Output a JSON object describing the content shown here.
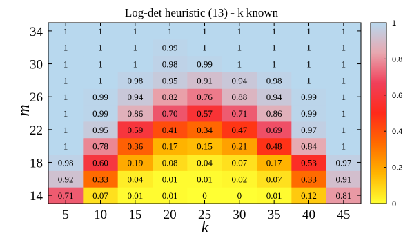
{
  "chart_data": {
    "type": "heatmap",
    "title": "Log-det heuristic (13) - k known",
    "xlabel": "k",
    "ylabel": "m",
    "x": [
      5,
      10,
      15,
      20,
      25,
      30,
      35,
      40,
      45
    ],
    "y": [
      14,
      16,
      18,
      20,
      22,
      24,
      26,
      28,
      30,
      32,
      34
    ],
    "x_ticks": [
      "5",
      "10",
      "15",
      "20",
      "25",
      "30",
      "35",
      "40",
      "45"
    ],
    "y_ticks": [
      "14",
      "18",
      "22",
      "26",
      "30",
      "34"
    ],
    "values": [
      [
        "0.71",
        "0.07",
        "0.01",
        "0.01",
        "0",
        "0",
        "0.01",
        "0.12",
        "0.81"
      ],
      [
        "0.92",
        "0.33",
        "0.04",
        "0.01",
        "0.01",
        "0.02",
        "0.07",
        "0.33",
        "0.91"
      ],
      [
        "0.98",
        "0.60",
        "0.19",
        "0.08",
        "0.04",
        "0.07",
        "0.17",
        "0.53",
        "0.97"
      ],
      [
        "1",
        "0.78",
        "0.36",
        "0.17",
        "0.15",
        "0.21",
        "0.48",
        "0.84",
        "1"
      ],
      [
        "1",
        "0.95",
        "0.59",
        "0.41",
        "0.34",
        "0.47",
        "0.69",
        "0.97",
        "1"
      ],
      [
        "1",
        "0.99",
        "0.86",
        "0.70",
        "0.57",
        "0.71",
        "0.86",
        "0.99",
        "1"
      ],
      [
        "1",
        "0.99",
        "0.94",
        "0.82",
        "0.76",
        "0.88",
        "0.94",
        "0.99",
        "1"
      ],
      [
        "1",
        "1",
        "0.98",
        "0.95",
        "0.91",
        "0.94",
        "0.98",
        "1",
        "1"
      ],
      [
        "1",
        "1",
        "1",
        "0.98",
        "0.99",
        "1",
        "1",
        "1",
        "1"
      ],
      [
        "1",
        "1",
        "1",
        "0.99",
        "1",
        "1",
        "1",
        "1",
        "1"
      ],
      [
        "1",
        "1",
        "1",
        "1",
        "1",
        "1",
        "1",
        "1",
        "1"
      ]
    ],
    "colorbar": {
      "range": [
        0,
        1
      ],
      "ticks": [
        "0",
        "0.2",
        "0.4",
        "0.6",
        "0.8",
        "1"
      ],
      "colors": [
        "#ffff33",
        "#ffb400",
        "#ff6a00",
        "#ff2a1a",
        "#f0405a",
        "#e8a8b0",
        "#b8d8ee"
      ]
    },
    "grid": false,
    "legend": "colorbar-right"
  }
}
